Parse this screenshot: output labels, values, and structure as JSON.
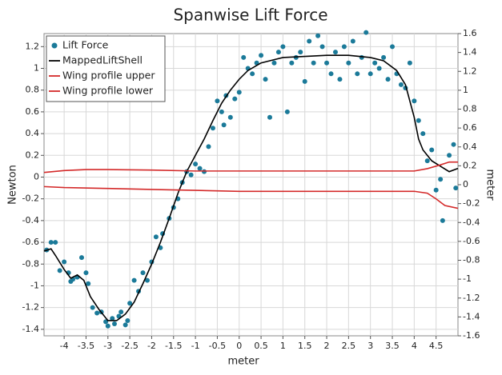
{
  "chart_data": {
    "type": "scatter",
    "title": "Spanwise Lift Force",
    "x_label": "meter",
    "y_label": "Newton",
    "y2_label": "meter",
    "xlim": [
      -4.46,
      5.0
    ],
    "ylim": [
      -1.46,
      1.32
    ],
    "y2lim": [
      -1.6,
      1.6
    ],
    "xticks": [
      -4,
      -3.5,
      -3,
      -2.5,
      -2,
      -1.5,
      -1,
      -0.5,
      0,
      0.5,
      1,
      1.5,
      2,
      2.5,
      3,
      3.5,
      4,
      4.5
    ],
    "yticks": [
      -1.4,
      -1.2,
      -1,
      -0.8,
      -0.6,
      -0.4,
      -0.2,
      0,
      0.2,
      0.4,
      0.6,
      0.8,
      1,
      1.2
    ],
    "y2ticks": [
      -1.6,
      -1.4,
      -1.2,
      -1,
      -0.8,
      -0.6,
      -0.4,
      -0.2,
      0,
      0.2,
      0.4,
      0.6,
      0.8,
      1,
      1.2,
      1.4,
      1.6
    ],
    "grid": true,
    "legend": "upper-left",
    "series": [
      {
        "name": "Lift Force",
        "type": "scatter",
        "color": "#1b7a99",
        "x": [
          -4.4,
          -4.3,
          -4.2,
          -4.1,
          -4.0,
          -3.9,
          -3.85,
          -3.8,
          -3.7,
          -3.6,
          -3.5,
          -3.45,
          -3.35,
          -3.25,
          -3.15,
          -3.05,
          -3.0,
          -2.9,
          -2.85,
          -2.75,
          -2.7,
          -2.6,
          -2.55,
          -2.5,
          -2.4,
          -2.3,
          -2.2,
          -2.1,
          -2.0,
          -1.9,
          -1.8,
          -1.75,
          -1.6,
          -1.5,
          -1.4,
          -1.3,
          -1.2,
          -1.1,
          -1.0,
          -0.9,
          -0.8,
          -0.7,
          -0.6,
          -0.5,
          -0.4,
          -0.35,
          -0.3,
          -0.2,
          -0.1,
          0,
          0.1,
          0.2,
          0.3,
          0.4,
          0.5,
          0.6,
          0.7,
          0.8,
          0.9,
          1.0,
          1.1,
          1.2,
          1.3,
          1.4,
          1.5,
          1.6,
          1.7,
          1.8,
          1.9,
          2.0,
          2.1,
          2.2,
          2.3,
          2.4,
          2.5,
          2.6,
          2.7,
          2.8,
          2.9,
          3.0,
          3.1,
          3.2,
          3.3,
          3.4,
          3.5,
          3.6,
          3.7,
          3.8,
          3.9,
          4.0,
          4.1,
          4.2,
          4.3,
          4.4,
          4.5,
          4.6,
          4.65,
          4.8,
          4.9,
          4.95
        ],
        "values": [
          -0.67,
          -0.6,
          -0.6,
          -0.86,
          -0.78,
          -0.88,
          -0.96,
          -0.94,
          -0.92,
          -0.74,
          -0.88,
          -0.98,
          -1.2,
          -1.25,
          -1.24,
          -1.33,
          -1.37,
          -1.3,
          -1.35,
          -1.28,
          -1.24,
          -1.36,
          -1.32,
          -1.16,
          -0.95,
          -1.05,
          -0.88,
          -0.95,
          -0.78,
          -0.55,
          -0.65,
          -0.52,
          -0.38,
          -0.28,
          -0.2,
          -0.05,
          0.05,
          0.02,
          0.12,
          0.08,
          0.05,
          0.28,
          0.45,
          0.7,
          0.6,
          0.48,
          0.75,
          0.55,
          0.72,
          0.78,
          1.1,
          1.0,
          0.95,
          1.05,
          1.12,
          0.9,
          0.55,
          1.05,
          1.15,
          1.2,
          0.6,
          1.05,
          1.1,
          1.15,
          0.88,
          1.25,
          1.05,
          1.3,
          1.2,
          1.05,
          0.95,
          1.15,
          0.9,
          1.2,
          1.05,
          1.25,
          0.95,
          1.1,
          1.33,
          0.95,
          1.05,
          1.0,
          1.1,
          0.9,
          1.2,
          0.95,
          0.85,
          0.82,
          1.05,
          0.7,
          0.52,
          0.4,
          0.15,
          0.25,
          -0.12,
          -0.02,
          -0.4,
          0.2,
          0.3,
          -0.1
        ]
      },
      {
        "name": "MappedLiftShell",
        "type": "line",
        "color": "#000000",
        "x": [
          -4.46,
          -4.3,
          -4.2,
          -4.0,
          -3.85,
          -3.7,
          -3.55,
          -3.4,
          -3.2,
          -3.0,
          -2.8,
          -2.6,
          -2.4,
          -2.2,
          -2.0,
          -1.8,
          -1.6,
          -1.4,
          -1.2,
          -1.0,
          -0.8,
          -0.6,
          -0.4,
          -0.2,
          0,
          0.2,
          0.5,
          0.8,
          1.0,
          1.5,
          2.0,
          2.5,
          3.0,
          3.3,
          3.6,
          3.8,
          4.0,
          4.1,
          4.2,
          4.4,
          4.6,
          4.8,
          5.0
        ],
        "values": [
          -0.68,
          -0.66,
          -0.72,
          -0.85,
          -0.93,
          -0.9,
          -0.95,
          -1.1,
          -1.22,
          -1.32,
          -1.32,
          -1.26,
          -1.15,
          -0.98,
          -0.8,
          -0.6,
          -0.38,
          -0.15,
          0.05,
          0.2,
          0.35,
          0.52,
          0.68,
          0.8,
          0.9,
          0.98,
          1.05,
          1.08,
          1.1,
          1.11,
          1.12,
          1.12,
          1.1,
          1.07,
          0.98,
          0.85,
          0.55,
          0.35,
          0.25,
          0.15,
          0.1,
          0.05,
          0.08
        ]
      },
      {
        "name": "Wing profile upper",
        "type": "line",
        "color": "#d42a2a",
        "axis": "y2",
        "x": [
          -4.46,
          -4.0,
          -3.5,
          -3.0,
          -2.0,
          -1.0,
          0,
          1,
          2,
          3,
          4,
          4.3,
          4.6,
          4.8,
          5.0
        ],
        "values": [
          0.13,
          0.15,
          0.16,
          0.16,
          0.155,
          0.145,
          0.145,
          0.145,
          0.145,
          0.145,
          0.145,
          0.17,
          0.21,
          0.24,
          0.24
        ]
      },
      {
        "name": "Wing profile lower",
        "type": "line",
        "color": "#d42a2a",
        "axis": "y2",
        "x": [
          -4.46,
          -4.0,
          -3.0,
          -2.0,
          -1.0,
          0,
          1,
          2,
          3,
          4,
          4.3,
          4.5,
          4.7,
          5.0
        ],
        "values": [
          -0.02,
          -0.03,
          -0.04,
          -0.05,
          -0.06,
          -0.07,
          -0.07,
          -0.07,
          -0.07,
          -0.07,
          -0.09,
          -0.15,
          -0.22,
          -0.25
        ]
      }
    ]
  }
}
